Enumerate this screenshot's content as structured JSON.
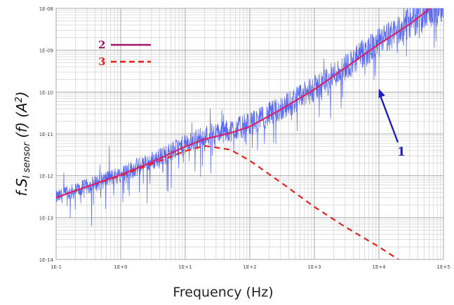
{
  "chart_data": {
    "type": "line",
    "x_scale": "log",
    "y_scale": "log",
    "xlim": [
      0.1,
      100000
    ],
    "ylim": [
      1e-14,
      1e-08
    ],
    "grid": true,
    "xlabel": "Frequency (Hz)",
    "ylabel_main": "f.S",
    "ylabel_sub": "I sensor",
    "ylabel_tail": " (f)  (A",
    "ylabel_sup": "2",
    "ylabel_close": ")",
    "x_ticks": [
      {
        "value": 0.1,
        "label": "1E-1"
      },
      {
        "value": 1,
        "label": "1E+0"
      },
      {
        "value": 10,
        "label": "1E+1"
      },
      {
        "value": 100,
        "label": "1E+2"
      },
      {
        "value": 1000,
        "label": "1E+3"
      },
      {
        "value": 10000,
        "label": "1E+4"
      },
      {
        "value": 100000,
        "label": "1E+5"
      }
    ],
    "y_ticks": [
      {
        "value": 1e-14,
        "label": "1E-14"
      },
      {
        "value": 1e-13,
        "label": "1E-13"
      },
      {
        "value": 1e-12,
        "label": "1E-12"
      },
      {
        "value": 1e-11,
        "label": "1E-11"
      },
      {
        "value": 1e-10,
        "label": "1E-10"
      },
      {
        "value": 1e-09,
        "label": "1E-09"
      },
      {
        "value": 1e-08,
        "label": "1E-08"
      }
    ],
    "legend": [
      {
        "label": "2",
        "color": "#a0186a",
        "dash": "solid"
      },
      {
        "label": "3",
        "color": "#e8201c",
        "dash": "dashed"
      }
    ],
    "annotation": {
      "label": "1",
      "color": "#2020c0",
      "points_to": {
        "x": 10000,
        "y": 1.2e-10
      }
    },
    "series": [
      {
        "label": "1",
        "color": "#3a4cf0",
        "style": "noisy",
        "x": [
          0.1,
          0.3,
          1,
          3,
          10,
          20,
          50,
          100,
          300,
          1000,
          3000,
          10000,
          30000,
          100000
        ],
        "y": [
          3e-13,
          5.5e-13,
          1.1e-12,
          2.2e-12,
          5.5e-12,
          9e-12,
          1.2e-11,
          1.7e-11,
          4e-11,
          1.2e-10,
          4e-10,
          1.5e-09,
          4.5e-09,
          1.3e-08
        ]
      },
      {
        "label": "2",
        "color": "#d1246c",
        "style": "solid",
        "x": [
          0.1,
          0.3,
          1,
          3,
          10,
          20,
          50,
          100,
          300,
          1000,
          3000,
          10000,
          30000,
          62000
        ],
        "y": [
          3e-13,
          5.5e-13,
          1.05e-12,
          2.1e-12,
          5e-12,
          7.5e-12,
          1.05e-11,
          1.5e-11,
          3.8e-11,
          1.15e-10,
          3.8e-10,
          1.4e-09,
          4.2e-09,
          1e-08
        ]
      },
      {
        "label": "3",
        "color": "#e8201c",
        "style": "dashed",
        "x": [
          0.1,
          0.3,
          1,
          3,
          10,
          20,
          50,
          100,
          300,
          1000,
          3000,
          10000,
          20000
        ],
        "y": [
          3e-13,
          5.5e-13,
          1e-12,
          1.9e-12,
          3.9e-12,
          5.2e-12,
          4.2e-12,
          2.3e-12,
          7e-13,
          1.8e-13,
          6e-14,
          2e-14,
          1e-14
        ]
      }
    ]
  }
}
